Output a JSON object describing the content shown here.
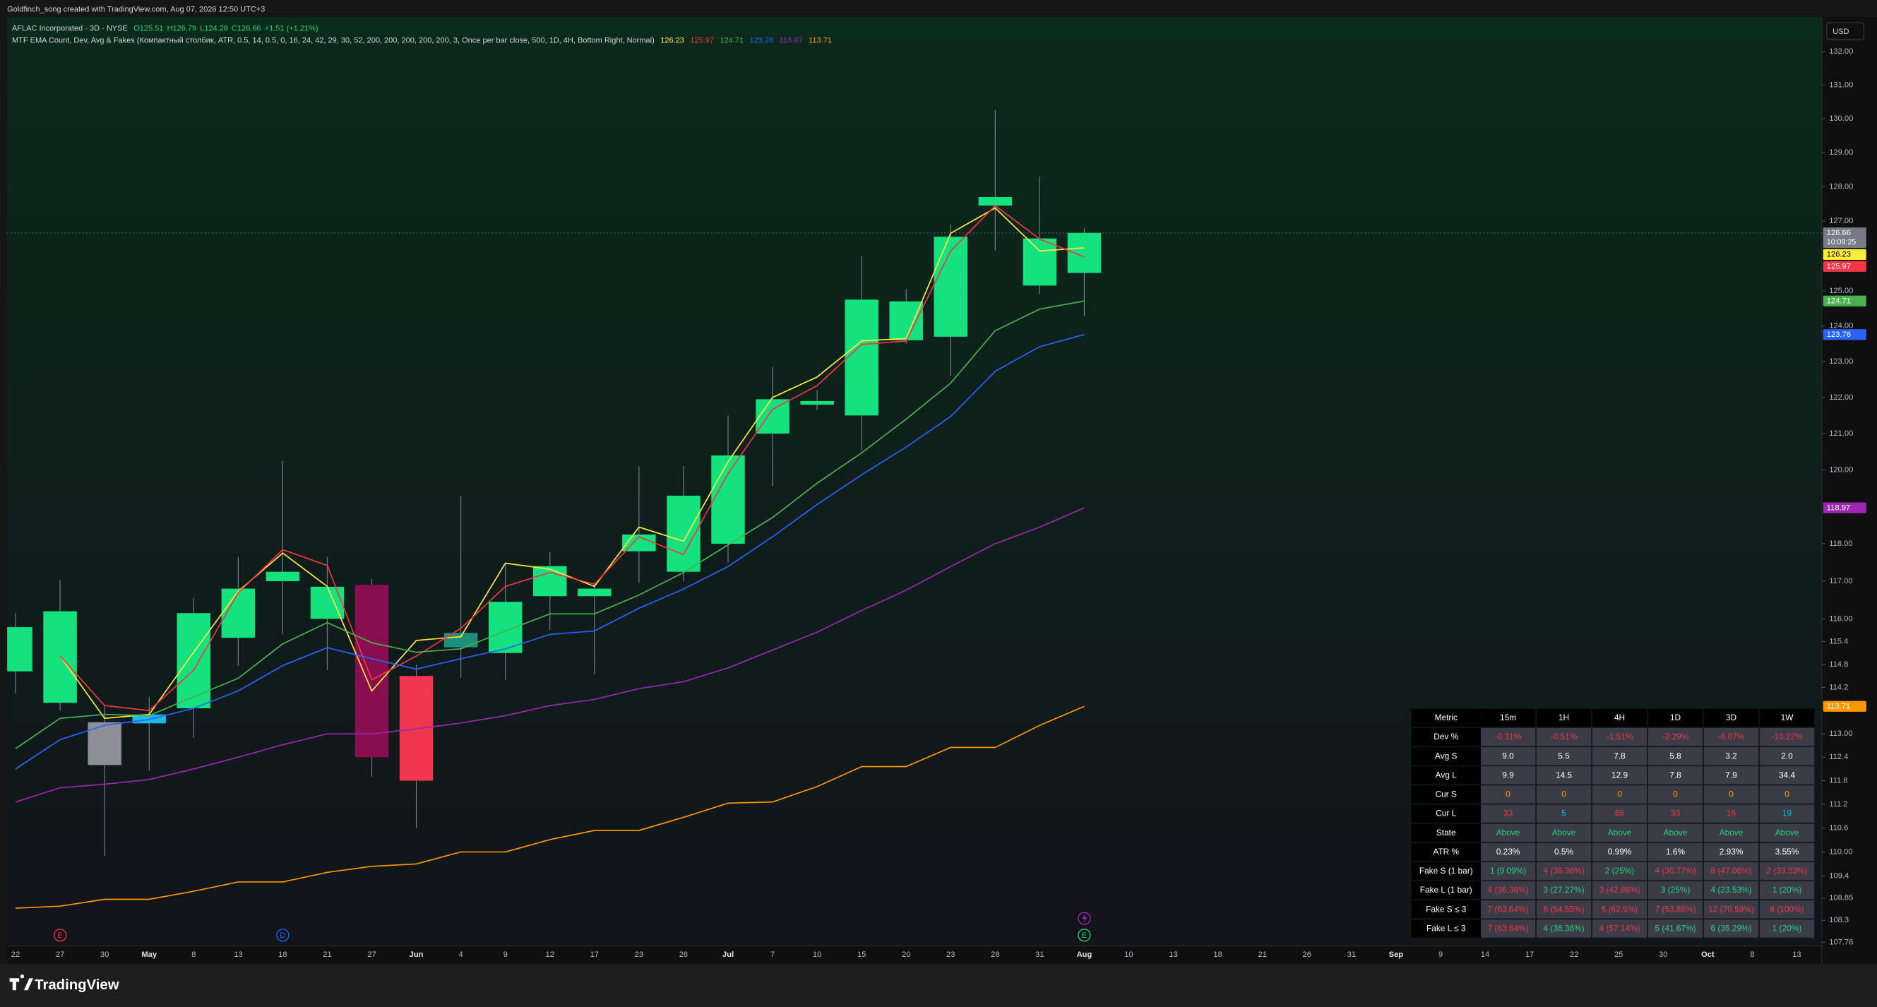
{
  "header": {
    "credit": "Goldfinch_song created with TradingView.com, Aug 07, 2026 12:50 UTC+3",
    "symbol": "AFLAC Incorporated · 3D · NYSE",
    "ohlc": [
      "O125.51",
      "H126.79",
      "L124.28",
      "C126.66",
      "+1.51 (+1.21%)"
    ],
    "indicator": "MTF EMA Count, Dev, Avg & Fakes (Компактный столбик, ATR, 0.5, 14, 0.5, 0, 16, 24, 42, 29, 30, 52, 200, 200, 200, 200, 200, 3, Once per bar close, 500, 1D, 4H, Bottom Right, Normal)",
    "currency": "USD"
  },
  "chart_data": {
    "type": "candlestick",
    "categories": [
      "22",
      "27",
      "30",
      "May",
      "8",
      "13",
      "18",
      "21",
      "27",
      "Jun",
      "4",
      "9",
      "12",
      "17",
      "23",
      "26",
      "Jul",
      "7",
      "10",
      "15",
      "20",
      "23",
      "28",
      "31",
      "Aug"
    ],
    "future_categories": [
      "10",
      "13",
      "18",
      "21",
      "26",
      "31",
      "Sep",
      "9",
      "14",
      "17",
      "22",
      "25",
      "30",
      "Oct",
      "8",
      "13"
    ],
    "open": [
      114.62,
      113.8,
      113.3,
      113.5,
      113.66,
      115.5,
      117.0,
      116.0,
      116.9,
      114.5,
      115.25,
      115.1,
      116.6,
      116.6,
      117.8,
      117.25,
      118.0,
      121.0,
      121.8,
      121.5,
      123.6,
      123.7,
      127.45,
      126.5,
      125.51
    ],
    "high": [
      116.16,
      117.03,
      113.75,
      113.96,
      116.55,
      117.65,
      120.25,
      117.65,
      117.05,
      114.8,
      119.3,
      117.5,
      117.78,
      116.95,
      120.1,
      120.1,
      121.5,
      122.85,
      122.2,
      126.0,
      125.05,
      126.9,
      130.25,
      128.3,
      126.79
    ],
    "low": [
      114.05,
      113.6,
      109.9,
      112.05,
      112.9,
      114.77,
      115.6,
      114.65,
      111.9,
      110.6,
      114.45,
      114.4,
      115.7,
      114.55,
      116.95,
      117.0,
      117.5,
      119.55,
      121.65,
      120.55,
      123.5,
      122.6,
      126.15,
      124.9,
      124.28
    ],
    "close": [
      115.78,
      116.2,
      112.2,
      113.27,
      116.15,
      116.8,
      117.25,
      116.85,
      112.4,
      111.8,
      115.63,
      116.45,
      117.4,
      116.8,
      118.25,
      119.3,
      120.4,
      121.95,
      121.9,
      124.75,
      124.7,
      126.55,
      127.7,
      125.15,
      126.66
    ],
    "candle_colors": [
      "#13e27f",
      "#13e27f",
      "#8c8f96",
      "#1ab9e6",
      "#13e27f",
      "#13e27f",
      "#13e27f",
      "#13e27f",
      "#880e4f",
      "#f2364d",
      "#1e8f7a",
      "#13e27f",
      "#13e27f",
      "#13e27f",
      "#13e27f",
      "#13e27f",
      "#13e27f",
      "#13e27f",
      "#13e27f",
      "#13e27f",
      "#13e27f",
      "#13e27f",
      "#13e27f",
      "#13e27f",
      "#13e27f"
    ],
    "wick_color": "#787b86",
    "series": [
      {
        "color": "#ffeb3b",
        "values": [
          null,
          115.02,
          113.4,
          113.5,
          115.12,
          116.73,
          117.75,
          116.86,
          114.11,
          115.43,
          115.53,
          117.48,
          117.32,
          116.86,
          118.45,
          118.07,
          120.23,
          122.0,
          122.57,
          123.58,
          123.65,
          126.65,
          127.38,
          126.14,
          126.23
        ]
      },
      {
        "color": "#f23645",
        "values": [
          null,
          115.02,
          113.73,
          113.6,
          114.65,
          116.69,
          117.84,
          117.42,
          114.4,
          115.02,
          115.75,
          116.86,
          117.23,
          116.92,
          118.19,
          117.71,
          119.9,
          121.67,
          122.33,
          123.48,
          123.58,
          126.14,
          127.45,
          126.48,
          125.97
        ]
      },
      {
        "color": "#4caf50",
        "values": [
          112.62,
          113.4,
          113.5,
          113.47,
          113.96,
          114.44,
          115.34,
          115.9,
          115.37,
          115.12,
          115.21,
          115.68,
          116.13,
          116.13,
          116.63,
          117.23,
          117.97,
          118.71,
          119.64,
          120.47,
          121.4,
          122.4,
          123.87,
          124.48,
          124.71
        ]
      },
      {
        "color": "#2962ff",
        "values": [
          112.1,
          112.85,
          113.22,
          113.37,
          113.66,
          114.11,
          114.77,
          115.24,
          114.95,
          114.68,
          114.95,
          115.21,
          115.59,
          115.68,
          116.28,
          116.79,
          117.39,
          118.19,
          119.06,
          119.87,
          120.63,
          121.47,
          122.73,
          123.42,
          123.76
        ]
      },
      {
        "color": "#9c27b0",
        "values": [
          111.26,
          111.62,
          111.71,
          111.83,
          112.1,
          112.4,
          112.72,
          113.0,
          113.0,
          113.13,
          113.28,
          113.47,
          113.73,
          113.89,
          114.17,
          114.35,
          114.71,
          115.18,
          115.65,
          116.22,
          116.76,
          117.39,
          118.0,
          118.45,
          118.97
        ]
      },
      {
        "color": "#ff9800",
        "values": [
          108.6,
          108.65,
          108.82,
          108.82,
          109.02,
          109.25,
          109.25,
          109.49,
          109.64,
          109.7,
          110.0,
          110.0,
          110.31,
          110.54,
          110.54,
          110.87,
          111.23,
          111.26,
          111.65,
          112.16,
          112.16,
          112.65,
          112.65,
          113.22,
          113.71
        ]
      }
    ],
    "ylim": [
      107.67,
      132.98
    ],
    "log_scale": true,
    "yticks": [
      {
        "value": 132,
        "label": "132.00"
      },
      {
        "value": 131,
        "label": "131.00"
      },
      {
        "value": 130,
        "label": "130.00"
      },
      {
        "value": 129,
        "label": "129.00"
      },
      {
        "value": 128,
        "label": "128.00"
      },
      {
        "value": 127,
        "label": "127.00"
      },
      {
        "value": 125,
        "label": "125.00"
      },
      {
        "value": 124,
        "label": "124.00"
      },
      {
        "value": 123,
        "label": "123.00"
      },
      {
        "value": 122,
        "label": "122.00"
      },
      {
        "value": 121,
        "label": "121.00"
      },
      {
        "value": 120,
        "label": "120.00"
      },
      {
        "value": 118,
        "label": "118.00"
      },
      {
        "value": 117,
        "label": "117.00"
      },
      {
        "value": 116,
        "label": "116.00"
      },
      115.4,
      114.8,
      114.2,
      {
        "value": 113,
        "label": "113.00"
      },
      112.4,
      111.8,
      111.2,
      110.6,
      {
        "value": 110,
        "label": "110.00"
      },
      109.4,
      108.85,
      108.3,
      107.76
    ],
    "countdown": "10:09:25",
    "close_label_color": "#787b86"
  },
  "events": [
    "E",
    "D",
    "E"
  ],
  "table": {
    "header": [
      "Metric",
      "15m",
      "1H",
      "4H",
      "1D",
      "3D",
      "1W"
    ],
    "rows": [
      {
        "cells": [
          "Dev %",
          "-0.31%",
          "-0.51%",
          "-1.51%",
          "-2.29%",
          "-6.07%",
          "-10.22%"
        ],
        "colors": [
          "#f23645",
          "#f23645",
          "#f23645",
          "#f23645",
          "#f23645",
          "#f23645"
        ]
      },
      {
        "cells": [
          "Avg S",
          "9.0",
          "5.5",
          "7.8",
          "5.8",
          "3.2",
          "2.0"
        ],
        "colors": [
          "#ffffff",
          "#ffffff",
          "#ffffff",
          "#ffffff",
          "#ffffff",
          "#ffffff"
        ]
      },
      {
        "cells": [
          "Avg L",
          "9.9",
          "14.5",
          "12.9",
          "7.8",
          "7.9",
          "34.4"
        ],
        "colors": [
          "#ffffff",
          "#ffffff",
          "#ffffff",
          "#ffffff",
          "#ffffff",
          "#ffffff"
        ]
      },
      {
        "cells": [
          "Cur S",
          "0",
          "0",
          "0",
          "0",
          "0",
          "0"
        ],
        "colors": [
          "#ff9800",
          "#ff9800",
          "#ff9800",
          "#ff9800",
          "#ff9800",
          "#ff9800"
        ]
      },
      {
        "cells": [
          "Cur L",
          "33",
          "5",
          "66",
          "33",
          "16",
          "19"
        ],
        "colors": [
          "#f23645",
          "#00bcd4",
          "#f23645",
          "#f23645",
          "#f23645",
          "#00bcd4"
        ]
      },
      {
        "cells": [
          "State",
          "Above",
          "Above",
          "Above",
          "Above",
          "Above",
          "Above"
        ],
        "colors": [
          "#26d07c",
          "#26d07c",
          "#26d07c",
          "#26d07c",
          "#26d07c",
          "#26d07c"
        ]
      },
      {
        "cells": [
          "ATR %",
          "0.23%",
          "0.5%",
          "0.99%",
          "1.6%",
          "2.93%",
          "3.55%"
        ],
        "colors": [
          "#ffffff",
          "#ffffff",
          "#ffffff",
          "#ffffff",
          "#ffffff",
          "#ffffff"
        ]
      },
      {
        "cells": [
          "Fake S (1 bar)",
          "1 (9.09%)",
          "4 (36.36%)",
          "2 (25%)",
          "4 (30.77%)",
          "8 (47.06%)",
          "2 (33.33%)"
        ],
        "colors": [
          "#26d07c",
          "#f23645",
          "#26d07c",
          "#f23645",
          "#f23645",
          "#f23645"
        ]
      },
      {
        "cells": [
          "Fake L (1 bar)",
          "4 (36.36%)",
          "3 (27.27%)",
          "3 (42.86%)",
          "3 (25%)",
          "4 (23.53%)",
          "1 (20%)"
        ],
        "colors": [
          "#f23645",
          "#26d07c",
          "#f23645",
          "#26d07c",
          "#26d07c",
          "#26d07c"
        ]
      },
      {
        "cells": [
          "Fake S ≤ 3",
          "7 (63.64%)",
          "6 (54.55%)",
          "5 (62.5%)",
          "7 (53.85%)",
          "12 (70.59%)",
          "6 (100%)"
        ],
        "colors": [
          "#f23645",
          "#f23645",
          "#f23645",
          "#f23645",
          "#f23645",
          "#f23645"
        ]
      },
      {
        "cells": [
          "Fake L ≤ 3",
          "7 (63.64%)",
          "4 (36.36%)",
          "4 (57.14%)",
          "5 (41.67%)",
          "6 (35.29%)",
          "1 (20%)"
        ],
        "colors": [
          "#f23645",
          "#26d07c",
          "#f23645",
          "#26d07c",
          "#26d07c",
          "#26d07c"
        ]
      }
    ]
  },
  "footer": {
    "brand": "TradingView"
  }
}
